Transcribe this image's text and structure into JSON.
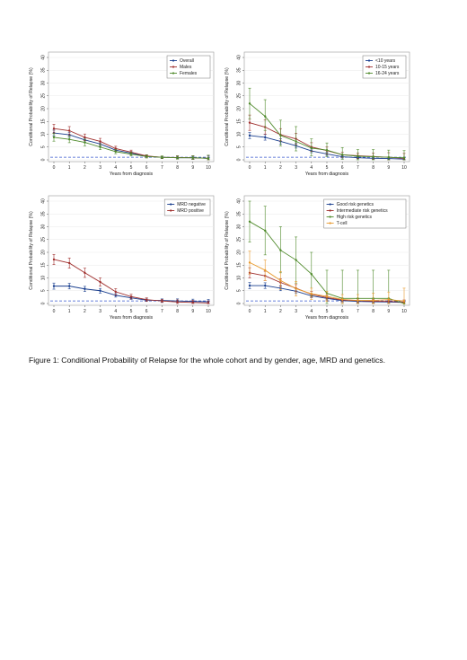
{
  "colors": {
    "blue": "#1a3f8f",
    "red": "#a0302e",
    "green": "#4e8a2a",
    "orange": "#e89a2e",
    "reference_line": "#3355cc"
  },
  "caption": "Figure 1: Conditional Probability of Relapse for the whole cohort and by gender, age, MRD and genetics.",
  "chart_data": [
    {
      "type": "line",
      "xlabel": "Years from diagnosis",
      "ylabel": "Conditional Probability of Relapse (%)",
      "xlim": [
        0,
        10
      ],
      "ylim": [
        0,
        40
      ],
      "xticks": [
        "0",
        "1",
        "2",
        "3",
        "4",
        "5",
        "6",
        "7",
        "8",
        "9",
        "10"
      ],
      "yticks": [
        "0",
        "5",
        "10",
        "15",
        "20",
        "25",
        "30",
        "35",
        "40"
      ],
      "reference_line": 1,
      "legend_position": "top-right",
      "x": [
        0,
        1,
        2,
        3,
        4,
        5,
        6,
        7,
        8,
        9,
        10
      ],
      "series": [
        {
          "name": "Overall",
          "color": "blue",
          "values": [
            10.5,
            9.8,
            7.8,
            6.2,
            3.8,
            2.6,
            1.4,
            1.0,
            0.8,
            0.8,
            0.6
          ],
          "lower": [
            9.4,
            8.8,
            7.0,
            5.4,
            3.2,
            2.0,
            1.0,
            0.6,
            0.4,
            0.3,
            0.1
          ],
          "upper": [
            11.6,
            10.8,
            8.6,
            7.0,
            4.4,
            3.2,
            1.8,
            1.4,
            1.4,
            1.4,
            1.6
          ]
        },
        {
          "name": "Males",
          "color": "red",
          "values": [
            12.2,
            11.4,
            8.8,
            7.2,
            4.4,
            3.0,
            1.5,
            1.0,
            0.9,
            0.8,
            0.6
          ],
          "lower": [
            10.5,
            9.8,
            7.5,
            6.0,
            3.5,
            2.2,
            1.0,
            0.5,
            0.3,
            0.2,
            0.0
          ],
          "upper": [
            13.9,
            13.0,
            10.1,
            8.4,
            5.3,
            3.8,
            2.0,
            1.5,
            1.6,
            1.6,
            1.8
          ]
        },
        {
          "name": "Females",
          "color": "green",
          "values": [
            8.8,
            8.0,
            6.8,
            5.0,
            3.2,
            2.2,
            1.3,
            1.0,
            0.8,
            0.8,
            0.6
          ],
          "lower": [
            7.3,
            6.7,
            5.5,
            4.0,
            2.4,
            1.5,
            0.7,
            0.5,
            0.3,
            0.2,
            0.0
          ],
          "upper": [
            10.3,
            9.3,
            8.1,
            6.0,
            4.0,
            2.9,
            1.9,
            1.5,
            1.5,
            1.6,
            1.8
          ]
        }
      ]
    },
    {
      "type": "line",
      "xlabel": "Years from diagnosis",
      "ylabel": "Conditional Probability of Relapse (%)",
      "xlim": [
        0,
        10
      ],
      "ylim": [
        0,
        40
      ],
      "xticks": [
        "0",
        "1",
        "2",
        "3",
        "4",
        "5",
        "6",
        "7",
        "8",
        "9",
        "10"
      ],
      "yticks": [
        "0",
        "5",
        "10",
        "15",
        "20",
        "25",
        "30",
        "35",
        "40"
      ],
      "reference_line": 1,
      "legend_position": "top-right",
      "x": [
        0,
        1,
        2,
        3,
        4,
        5,
        6,
        7,
        8,
        9,
        10
      ],
      "series": [
        {
          "name": "<10 years",
          "color": "blue",
          "values": [
            9.5,
            8.8,
            7.2,
            5.5,
            3.5,
            2.3,
            1.2,
            0.8,
            0.6,
            0.5,
            0.3
          ],
          "lower": [
            8.3,
            7.7,
            6.2,
            4.6,
            2.8,
            1.7,
            0.7,
            0.4,
            0.2,
            0.1,
            0.0
          ],
          "upper": [
            10.7,
            9.9,
            8.2,
            6.4,
            4.2,
            2.9,
            1.7,
            1.2,
            1.1,
            1.1,
            1.0
          ]
        },
        {
          "name": "10-15 years",
          "color": "red",
          "values": [
            14.5,
            12.8,
            9.8,
            8.2,
            5.0,
            3.6,
            2.0,
            1.6,
            1.3,
            1.0,
            0.6
          ],
          "lower": [
            11.5,
            10.0,
            7.4,
            6.0,
            3.3,
            2.2,
            1.0,
            0.6,
            0.3,
            0.0,
            0.0
          ],
          "upper": [
            17.5,
            15.6,
            12.2,
            10.4,
            6.7,
            5.0,
            3.0,
            2.6,
            2.6,
            2.8,
            2.5
          ]
        },
        {
          "name": "16-24 years",
          "color": "green",
          "values": [
            22.0,
            17.0,
            9.5,
            7.2,
            4.6,
            3.8,
            2.0,
            1.4,
            1.2,
            1.0,
            0.8
          ],
          "lower": [
            16.0,
            11.5,
            5.5,
            3.5,
            1.6,
            1.3,
            0.2,
            0.0,
            0.0,
            0.0,
            0.0
          ],
          "upper": [
            28.0,
            23.5,
            15.5,
            13.0,
            8.2,
            6.6,
            4.8,
            4.0,
            4.0,
            3.8,
            3.6
          ]
        }
      ]
    },
    {
      "type": "line",
      "xlabel": "Years from diagnosis",
      "ylabel": "Conditional Probability of Relapse (%)",
      "xlim": [
        0,
        10
      ],
      "ylim": [
        0,
        40
      ],
      "xticks": [
        "0",
        "1",
        "2",
        "3",
        "4",
        "5",
        "6",
        "7",
        "8",
        "9",
        "10"
      ],
      "yticks": [
        "0",
        "5",
        "10",
        "15",
        "20",
        "25",
        "30",
        "35",
        "40"
      ],
      "reference_line": 1,
      "legend_position": "top-right",
      "x": [
        0,
        1,
        2,
        3,
        4,
        5,
        6,
        7,
        8,
        9,
        10
      ],
      "series": [
        {
          "name": "MRD negative",
          "color": "blue",
          "values": [
            6.8,
            6.8,
            5.7,
            5.0,
            3.2,
            2.2,
            1.3,
            1.2,
            1.0,
            0.8,
            0.7
          ],
          "lower": [
            5.6,
            5.7,
            4.7,
            4.1,
            2.5,
            1.6,
            0.8,
            0.6,
            0.4,
            0.2,
            0.0
          ],
          "upper": [
            8.0,
            7.9,
            6.7,
            5.9,
            3.9,
            2.8,
            1.8,
            1.8,
            1.8,
            1.7,
            1.6
          ]
        },
        {
          "name": "MRD positive",
          "color": "red",
          "values": [
            17.2,
            15.8,
            12.0,
            8.4,
            4.6,
            2.7,
            1.5,
            1.0,
            0.6,
            0.4,
            0.2
          ],
          "lower": [
            15.2,
            13.8,
            10.2,
            6.8,
            3.4,
            1.8,
            0.8,
            0.4,
            0.0,
            0.0,
            0.0
          ],
          "upper": [
            19.2,
            17.8,
            13.8,
            10.0,
            5.8,
            3.6,
            2.2,
            1.6,
            1.4,
            1.2,
            1.0
          ]
        }
      ]
    },
    {
      "type": "line",
      "xlabel": "Years from diagnosis",
      "ylabel": "Conditional Probability of Relapse (%)",
      "xlim": [
        0,
        10
      ],
      "ylim": [
        0,
        40
      ],
      "xticks": [
        "0",
        "1",
        "2",
        "3",
        "4",
        "5",
        "6",
        "7",
        "8",
        "9",
        "10"
      ],
      "yticks": [
        "0",
        "5",
        "10",
        "15",
        "20",
        "25",
        "30",
        "35",
        "40"
      ],
      "reference_line": 1,
      "legend_position": "top-right",
      "x": [
        0,
        1,
        2,
        3,
        4,
        5,
        6,
        7,
        8,
        9,
        10
      ],
      "series": [
        {
          "name": "Good risk genetics",
          "color": "blue",
          "values": [
            7.0,
            7.0,
            6.0,
            4.8,
            3.0,
            2.0,
            1.1,
            0.8,
            0.7,
            0.6,
            0.4
          ],
          "lower": [
            5.8,
            5.9,
            5.0,
            3.9,
            2.3,
            1.4,
            0.6,
            0.3,
            0.2,
            0.1,
            0.0
          ],
          "upper": [
            8.2,
            8.1,
            7.0,
            5.7,
            3.7,
            2.6,
            1.6,
            1.3,
            1.2,
            1.1,
            1.0
          ]
        },
        {
          "name": "Intermediate risk genetics",
          "color": "red",
          "values": [
            12.0,
            10.8,
            8.2,
            6.0,
            3.6,
            2.3,
            1.4,
            1.1,
            0.9,
            0.8,
            0.6
          ],
          "lower": [
            10.0,
            9.0,
            6.7,
            4.6,
            2.5,
            1.4,
            0.7,
            0.4,
            0.2,
            0.1,
            0.0
          ],
          "upper": [
            14.0,
            12.6,
            9.7,
            7.4,
            4.7,
            3.2,
            2.1,
            1.8,
            1.6,
            1.5,
            1.4
          ]
        },
        {
          "name": "High risk genetics",
          "color": "green",
          "values": [
            32.0,
            28.5,
            20.8,
            17.0,
            11.5,
            4.0,
            2.0,
            2.0,
            2.0,
            2.0,
            0.0
          ],
          "lower": [
            24.0,
            19.0,
            12.0,
            8.0,
            3.0,
            0.0,
            0.0,
            0.0,
            0.0,
            0.0,
            0.0
          ],
          "upper": [
            40.0,
            38.0,
            30.0,
            26.0,
            20.0,
            13.0,
            13.0,
            13.0,
            13.0,
            13.0,
            0.0
          ]
        },
        {
          "name": "T-cell",
          "color": "orange",
          "values": [
            16.0,
            13.0,
            9.0,
            5.8,
            3.8,
            2.8,
            1.6,
            1.2,
            1.2,
            1.5,
            1.0
          ],
          "lower": [
            11.5,
            9.0,
            5.5,
            3.0,
            1.6,
            0.8,
            0.0,
            0.0,
            0.0,
            0.0,
            0.0
          ],
          "upper": [
            20.5,
            17.0,
            12.5,
            8.6,
            6.0,
            4.8,
            3.5,
            3.5,
            4.0,
            4.5,
            6.0
          ]
        }
      ]
    }
  ]
}
